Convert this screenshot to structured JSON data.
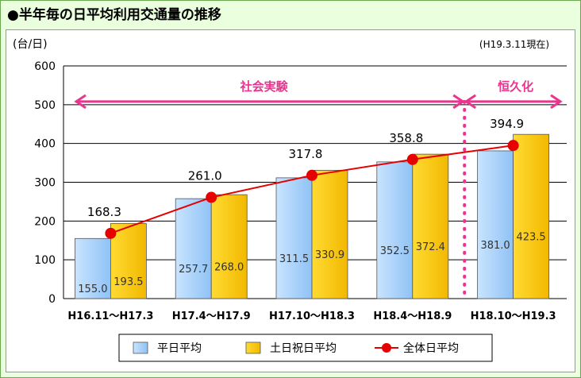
{
  "title": "●半年毎の日平均利用交通量の推移",
  "unit_label": "(台/日)",
  "as_of": "(H19.3.11現在)",
  "phases": [
    {
      "label": "社会実験"
    },
    {
      "label": "恒久化"
    }
  ],
  "legend": [
    {
      "label": "平日平均",
      "color": "#99ccff"
    },
    {
      "label": "土日祝日平均",
      "color": "#ffcc00"
    },
    {
      "label": "全体日平均",
      "color": "#e60000"
    }
  ],
  "chart_data": {
    "type": "bar",
    "title": "",
    "xlabel": "",
    "ylabel": "(台/日)",
    "ylim": [
      0,
      600
    ],
    "yticks": [
      "0",
      "100",
      "200",
      "300",
      "400",
      "500",
      "600"
    ],
    "grid": true,
    "legend_position": "bottom",
    "categories": [
      "H16.11〜H17.3",
      "H17.4〜H17.9",
      "H17.10〜H18.3",
      "H18.4〜H18.9",
      "H18.10〜H19.3"
    ],
    "series": [
      {
        "name": "平日平均",
        "type": "bar",
        "color": "#99ccff",
        "values": [
          155.0,
          257.7,
          311.5,
          352.5,
          381.0
        ],
        "labels": [
          "155.0",
          "257.7",
          "311.5",
          "352.5",
          "381.0"
        ]
      },
      {
        "name": "土日祝日平均",
        "type": "bar",
        "color": "#ffcc00",
        "values": [
          193.5,
          268.0,
          330.9,
          372.4,
          423.5
        ],
        "labels": [
          "193.5",
          "268.0",
          "330.9",
          "372.4",
          "423.5"
        ]
      },
      {
        "name": "全体日平均",
        "type": "line",
        "color": "#e60000",
        "values": [
          168.3,
          261.0,
          317.8,
          358.8,
          394.9
        ],
        "labels": [
          "168.3",
          "261.0",
          "317.8",
          "358.8",
          "394.9"
        ]
      }
    ]
  }
}
